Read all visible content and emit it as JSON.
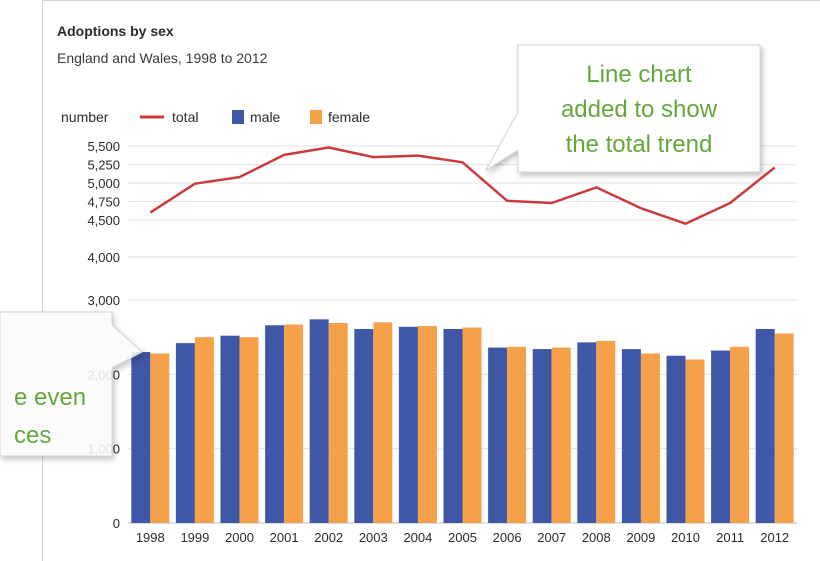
{
  "chart_data": {
    "type": "bar",
    "title": "Adoptions by sex",
    "subtitle": "England and Wales, 1998 to 2012",
    "ylabel": "number",
    "categories": [
      "1998",
      "1999",
      "2000",
      "2001",
      "2002",
      "2003",
      "2004",
      "2005",
      "2006",
      "2007",
      "2008",
      "2009",
      "2010",
      "2011",
      "2012"
    ],
    "series": [
      {
        "name": "male",
        "kind": "bar",
        "color": "#3e57a6",
        "values": [
          2300,
          2420,
          2520,
          2660,
          2740,
          2610,
          2640,
          2610,
          2360,
          2340,
          2430,
          2340,
          2250,
          2320,
          2610
        ]
      },
      {
        "name": "female",
        "kind": "bar",
        "color": "#f4a14a",
        "values": [
          2280,
          2500,
          2500,
          2670,
          2690,
          2700,
          2650,
          2630,
          2370,
          2360,
          2450,
          2280,
          2200,
          2370,
          2550
        ]
      },
      {
        "name": "total",
        "kind": "line",
        "color": "#cc3b3b",
        "values": [
          4600,
          4990,
          5080,
          5380,
          5480,
          5350,
          5370,
          5280,
          4760,
          4730,
          4940,
          4660,
          4450,
          4730,
          5210
        ]
      }
    ],
    "lower_axis": {
      "ylim": [
        0,
        3000
      ],
      "ticks": [
        {
          "value": 0,
          "label": "0"
        },
        {
          "value": 1000,
          "label": "1,000"
        },
        {
          "value": 2000,
          "label": "2,000"
        },
        {
          "value": 3000,
          "label": "3,000"
        }
      ]
    },
    "upper_axis": {
      "ylim": [
        4000,
        5500
      ],
      "ticks": [
        {
          "value": 4000,
          "label": "4,000"
        },
        {
          "value": 4500,
          "label": "4,500"
        },
        {
          "value": 4750,
          "label": "4,750"
        },
        {
          "value": 5000,
          "label": "5,000"
        },
        {
          "value": 5250,
          "label": "5,250"
        },
        {
          "value": 5500,
          "label": "5,500"
        }
      ]
    },
    "legend_position": "top-left",
    "grid": true,
    "annotations": [
      {
        "id": "line-note",
        "lines": [
          "Line chart",
          "added to show",
          "the total trend"
        ]
      },
      {
        "id": "bar-note",
        "lines": [
          "e even",
          "ces"
        ]
      }
    ]
  }
}
